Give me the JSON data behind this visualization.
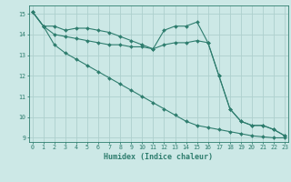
{
  "xlabel": "Humidex (Indice chaleur)",
  "x": [
    0,
    1,
    2,
    3,
    4,
    5,
    6,
    7,
    8,
    9,
    10,
    11,
    12,
    13,
    14,
    15,
    16,
    17,
    18,
    19,
    20,
    21,
    22,
    23
  ],
  "line1": [
    15.1,
    14.4,
    14.4,
    14.2,
    14.3,
    14.3,
    14.2,
    14.1,
    13.9,
    13.7,
    13.5,
    13.3,
    14.2,
    14.4,
    14.4,
    14.6,
    13.6,
    12.0,
    10.4,
    9.8,
    9.6,
    9.6,
    9.4,
    9.1
  ],
  "line2": [
    15.1,
    14.4,
    14.0,
    13.9,
    13.8,
    13.7,
    13.6,
    13.5,
    13.5,
    13.4,
    13.4,
    13.3,
    13.5,
    13.6,
    13.6,
    13.7,
    13.6,
    12.0,
    10.4,
    9.8,
    9.6,
    9.6,
    9.4,
    9.1
  ],
  "line3": [
    15.1,
    14.4,
    13.5,
    13.1,
    12.8,
    12.5,
    12.2,
    11.9,
    11.6,
    11.3,
    11.0,
    10.7,
    10.4,
    10.1,
    9.8,
    9.6,
    9.5,
    9.4,
    9.3,
    9.2,
    9.1,
    9.05,
    9.0,
    9.0
  ],
  "line_color": "#2e7d6e",
  "bg_color": "#cce8e6",
  "grid_color": "#aed0cd",
  "ylim": [
    8.8,
    15.4
  ],
  "yticks": [
    9,
    10,
    11,
    12,
    13,
    14,
    15
  ],
  "xticks": [
    0,
    1,
    2,
    3,
    4,
    5,
    6,
    7,
    8,
    9,
    10,
    11,
    12,
    13,
    14,
    15,
    16,
    17,
    18,
    19,
    20,
    21,
    22,
    23
  ],
  "xlim": [
    -0.3,
    23.3
  ]
}
